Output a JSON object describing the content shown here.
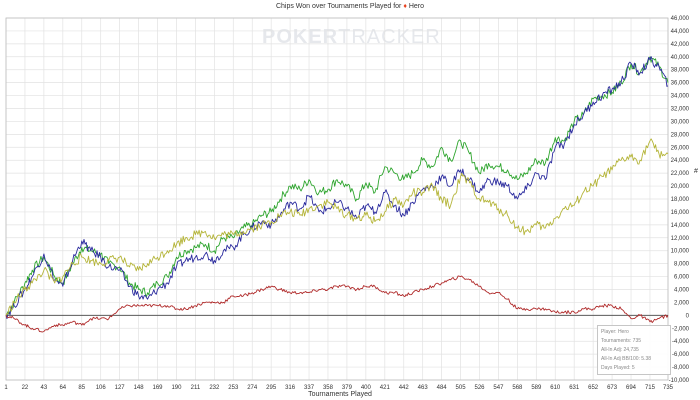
{
  "chart": {
    "title_prefix": "Chips Won over Tournaments Played for",
    "title_suit": "♦",
    "title_player": "Hero",
    "watermark_a": "POKER",
    "watermark_b": "TRACKER",
    "xlabel": "Tournaments Played",
    "ylabel_glyph": "#"
  },
  "info": {
    "player": "Player: Hero",
    "tournaments": "Tournaments: 735",
    "allin_adj": "All-In Adj: 24,735",
    "allin_bb": "All-In Adj BB/100: 5.38",
    "days": "Days Played: 5"
  },
  "chart_data": {
    "type": "line",
    "title": "Chips Won over Tournaments Played for Hero",
    "xlabel": "Tournaments Played",
    "ylabel": "",
    "xlim": [
      1,
      735
    ],
    "ylim": [
      -10000,
      46000
    ],
    "x_ticks": [
      1,
      22,
      43,
      64,
      85,
      106,
      127,
      148,
      169,
      190,
      211,
      232,
      253,
      274,
      295,
      316,
      337,
      358,
      379,
      400,
      421,
      442,
      463,
      484,
      505,
      526,
      547,
      568,
      589,
      610,
      631,
      652,
      673,
      694,
      715,
      735
    ],
    "y_ticks": [
      -10000,
      -8000,
      -6000,
      -4000,
      -2000,
      0,
      2000,
      4000,
      6000,
      8000,
      10000,
      12000,
      14000,
      16000,
      18000,
      20000,
      22000,
      24000,
      26000,
      28000,
      30000,
      32000,
      34000,
      36000,
      38000,
      40000,
      42000,
      44000,
      46000
    ],
    "grid": true,
    "legend": "none",
    "series": [
      {
        "color": "#2ea52e",
        "x": [
          1,
          10,
          22,
          30,
          43,
          55,
          64,
          75,
          85,
          95,
          106,
          115,
          127,
          138,
          148,
          158,
          169,
          180,
          190,
          200,
          211,
          222,
          232,
          242,
          253,
          264,
          274,
          285,
          295,
          305,
          316,
          327,
          337,
          348,
          358,
          368,
          379,
          390,
          400,
          410,
          421,
          432,
          442,
          452,
          463,
          474,
          484,
          494,
          505,
          515,
          526,
          536,
          547,
          557,
          568,
          578,
          589,
          599,
          610,
          620,
          631,
          641,
          652,
          662,
          673,
          683,
          694,
          704,
          715,
          725,
          735
        ],
        "y": [
          0,
          2000,
          5000,
          7000,
          9000,
          6000,
          5000,
          8000,
          10500,
          10000,
          9500,
          8000,
          7500,
          5000,
          4000,
          3500,
          5000,
          6000,
          9000,
          10000,
          10500,
          11000,
          10000,
          12000,
          12000,
          13500,
          14000,
          15500,
          16000,
          18000,
          20000,
          19500,
          21000,
          19000,
          19500,
          21000,
          20000,
          18000,
          20500,
          19000,
          23000,
          22000,
          21000,
          22000,
          24000,
          23000,
          26000,
          24000,
          27000,
          25000,
          22000,
          23500,
          23000,
          22500,
          21000,
          22000,
          24000,
          23500,
          27500,
          27000,
          30000,
          31000,
          33500,
          34000,
          34500,
          36000,
          39000,
          37500,
          40000,
          38500,
          36000
        ]
      },
      {
        "color": "#2b2b9e",
        "x": [
          1,
          10,
          22,
          30,
          43,
          55,
          64,
          75,
          85,
          95,
          106,
          115,
          127,
          138,
          148,
          158,
          169,
          180,
          190,
          200,
          211,
          222,
          232,
          242,
          253,
          264,
          274,
          285,
          295,
          305,
          316,
          327,
          337,
          348,
          358,
          368,
          379,
          390,
          400,
          410,
          421,
          432,
          442,
          452,
          463,
          474,
          484,
          494,
          505,
          515,
          526,
          536,
          547,
          557,
          568,
          578,
          589,
          599,
          610,
          620,
          631,
          641,
          652,
          662,
          673,
          683,
          694,
          704,
          715,
          725,
          735
        ],
        "y": [
          0,
          1500,
          4000,
          6000,
          9500,
          5500,
          4500,
          8500,
          11500,
          10000,
          9000,
          7500,
          7000,
          4500,
          3000,
          2500,
          4000,
          5000,
          7500,
          8500,
          9000,
          9500,
          8500,
          10000,
          10500,
          12500,
          13500,
          14500,
          14000,
          15500,
          17500,
          16500,
          18500,
          16000,
          16500,
          17500,
          16500,
          15000,
          17000,
          16000,
          19000,
          17000,
          15500,
          17500,
          19500,
          20000,
          21500,
          20000,
          22500,
          21000,
          19000,
          21000,
          20500,
          20000,
          18000,
          19500,
          22000,
          21000,
          26000,
          26500,
          29500,
          31000,
          33000,
          34000,
          35000,
          36000,
          39000,
          37500,
          39500,
          38500,
          35500
        ]
      },
      {
        "color": "#b5b53a",
        "x": [
          1,
          10,
          22,
          30,
          43,
          55,
          64,
          75,
          85,
          95,
          106,
          115,
          127,
          138,
          148,
          158,
          169,
          180,
          190,
          200,
          211,
          222,
          232,
          242,
          253,
          264,
          274,
          285,
          295,
          305,
          316,
          327,
          337,
          348,
          358,
          368,
          379,
          390,
          400,
          410,
          421,
          432,
          442,
          452,
          463,
          474,
          484,
          494,
          505,
          515,
          526,
          536,
          547,
          557,
          568,
          578,
          589,
          599,
          610,
          620,
          631,
          641,
          652,
          662,
          673,
          683,
          694,
          704,
          715,
          725,
          735
        ],
        "y": [
          0,
          2000,
          4000,
          5000,
          7000,
          5000,
          6000,
          8000,
          9000,
          8500,
          8000,
          8500,
          9000,
          7500,
          7000,
          8000,
          9000,
          10000,
          11000,
          12000,
          12500,
          13000,
          12000,
          12500,
          12500,
          13000,
          13500,
          14000,
          14500,
          15500,
          16000,
          15500,
          16500,
          17000,
          17500,
          16500,
          15500,
          15000,
          15500,
          14500,
          16000,
          18000,
          17000,
          19000,
          19000,
          20000,
          18000,
          17000,
          21500,
          20500,
          18000,
          17500,
          16500,
          15500,
          13500,
          13000,
          14000,
          13500,
          15000,
          16500,
          17000,
          19000,
          20000,
          21500,
          22500,
          24000,
          24500,
          24000,
          27000,
          25000,
          25000
        ]
      },
      {
        "color": "#b02b2b",
        "x": [
          1,
          10,
          22,
          30,
          43,
          55,
          64,
          75,
          85,
          95,
          106,
          115,
          127,
          138,
          148,
          158,
          169,
          180,
          190,
          200,
          211,
          222,
          232,
          242,
          253,
          264,
          274,
          285,
          295,
          305,
          316,
          327,
          337,
          348,
          358,
          368,
          379,
          390,
          400,
          410,
          421,
          432,
          442,
          452,
          463,
          474,
          484,
          494,
          505,
          515,
          526,
          536,
          547,
          557,
          568,
          578,
          589,
          599,
          610,
          620,
          631,
          641,
          652,
          662,
          673,
          683,
          694,
          704,
          715,
          725,
          735
        ],
        "y": [
          0,
          -500,
          -1500,
          -2000,
          -2500,
          -1500,
          -1500,
          -1000,
          -1500,
          -500,
          -500,
          -500,
          1000,
          1500,
          1500,
          1500,
          1500,
          1500,
          1000,
          1000,
          1500,
          2000,
          2000,
          2000,
          3000,
          3000,
          3500,
          4000,
          4500,
          4000,
          3500,
          3500,
          3500,
          4000,
          4000,
          4500,
          4500,
          4000,
          4500,
          4500,
          3500,
          3500,
          3000,
          3500,
          4000,
          4500,
          5000,
          5500,
          6000,
          5500,
          4500,
          3500,
          3500,
          2500,
          1000,
          1000,
          1000,
          1000,
          500,
          500,
          500,
          1000,
          1000,
          1500,
          1500,
          1000,
          -500,
          0,
          -1000,
          -500,
          0
        ]
      }
    ]
  }
}
